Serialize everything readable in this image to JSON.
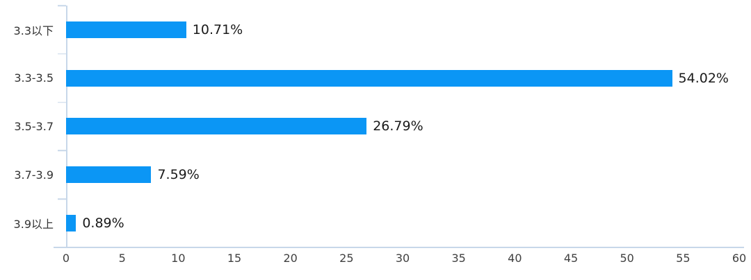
{
  "chart_data": {
    "type": "bar",
    "orientation": "horizontal",
    "title": "",
    "xlabel": "",
    "ylabel": "",
    "categories": [
      "3.3以下",
      "3.3-3.5",
      "3.5-3.7",
      "3.7-3.9",
      "3.9以上"
    ],
    "values": [
      10.71,
      54.02,
      26.79,
      7.59,
      0.89
    ],
    "data_labels": [
      "10.71%",
      "54.02%",
      "26.79%",
      "7.59%",
      "0.89%"
    ],
    "x_ticks": [
      "0",
      "5",
      "10",
      "15",
      "20",
      "25",
      "30",
      "35",
      "40",
      "45",
      "50",
      "55",
      "60"
    ],
    "xlim": [
      0,
      60
    ],
    "grid": false,
    "legend": "none",
    "bar_color": "#0b96f5",
    "axis_color": "#c7d7e9",
    "label_text_color": "#1a1a1a",
    "tick_text_color": "#404040"
  }
}
